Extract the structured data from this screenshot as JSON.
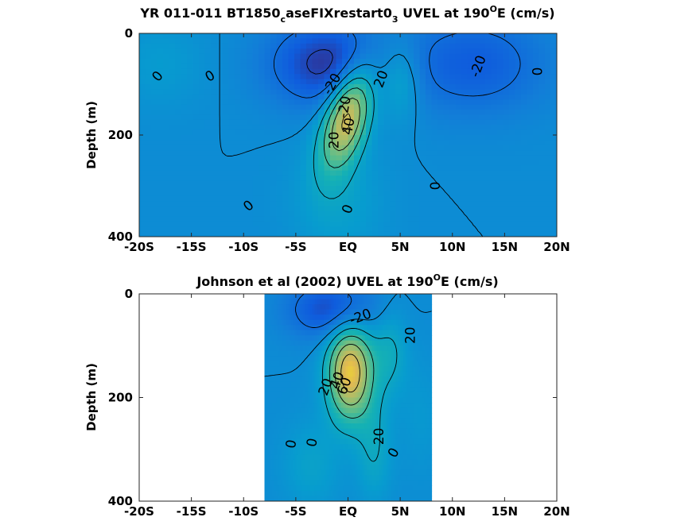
{
  "chart_data": [
    {
      "type": "heatmap",
      "title_text": "YR 011-011 BT1850",
      "title_sub1": "c",
      "title_mid": "aseFIXrestart0",
      "title_sub2": "3",
      "title_end": " UVEL at 190",
      "title_sup": "O",
      "title_tail": "E (cm/s)",
      "ylabel": "Depth (m)",
      "xlim": [
        -20,
        20
      ],
      "ylim": [
        0,
        400
      ],
      "x_tick_values": [
        -20,
        -15,
        -10,
        -5,
        0,
        5,
        10,
        15,
        20
      ],
      "x_tick_labels": [
        "-20S",
        "-15S",
        "-10S",
        "-5S",
        "EQ",
        "5N",
        "10N",
        "15N",
        "20N"
      ],
      "y_tick_values": [
        0,
        200,
        400
      ],
      "y_tick_labels": [
        "0",
        "200",
        "400"
      ],
      "data_x_extent": [
        -20,
        20
      ],
      "features": [
        {
          "x": 0,
          "y": 160,
          "v": 90,
          "sx": 1.5,
          "sy": 70,
          "tilt": -0.012
        },
        {
          "x": 5,
          "y": 90,
          "v": 28,
          "sx": 1.4,
          "sy": 55
        },
        {
          "x": -2,
          "y": 60,
          "v": -45,
          "sx": 4,
          "sy": 60
        },
        {
          "x": 12,
          "y": 60,
          "v": -30,
          "sx": 5,
          "sy": 70
        },
        {
          "x": -18,
          "y": 60,
          "v": 10,
          "sx": 3,
          "sy": 60
        },
        {
          "x": -1,
          "y": 330,
          "v": 15,
          "sx": 3,
          "sy": 80
        }
      ],
      "contour_labels": [
        {
          "text": "0",
          "x": -18.2,
          "y": 85,
          "rot": -50
        },
        {
          "text": "0",
          "x": -13.2,
          "y": 85,
          "rot": -30
        },
        {
          "text": "-20",
          "x": -1.5,
          "y": 100,
          "rot": -60
        },
        {
          "text": "-20",
          "x": 12.5,
          "y": 65,
          "rot": -70
        },
        {
          "text": "20",
          "x": 3.2,
          "y": 90,
          "rot": -70
        },
        {
          "text": "0",
          "x": 18.2,
          "y": 75,
          "rot": -90
        },
        {
          "text": "-20",
          "x": -0.3,
          "y": 145,
          "rot": -80
        },
        {
          "text": "40",
          "x": 0.1,
          "y": 183,
          "rot": -80
        },
        {
          "text": "20",
          "x": -1.3,
          "y": 210,
          "rot": -90
        },
        {
          "text": "0",
          "x": -9.5,
          "y": 340,
          "rot": -40
        },
        {
          "text": "0",
          "x": 0,
          "y": 346,
          "rot": -70
        },
        {
          "text": "0",
          "x": 8.4,
          "y": 300,
          "rot": -90
        }
      ]
    },
    {
      "type": "heatmap",
      "title_text": "Johnson et al (2002) UVEL at 190",
      "title_sup": "O",
      "title_tail": "E (cm/s)",
      "ylabel": "Depth (m)",
      "xlim": [
        -20,
        20
      ],
      "ylim": [
        0,
        400
      ],
      "x_tick_values": [
        -20,
        -15,
        -10,
        -5,
        0,
        5,
        10,
        15,
        20
      ],
      "x_tick_labels": [
        "-20S",
        "-15S",
        "-10S",
        "-5S",
        "EQ",
        "5N",
        "10N",
        "15N",
        "20N"
      ],
      "y_tick_values": [
        0,
        200,
        400
      ],
      "y_tick_labels": [
        "0",
        "200",
        "400"
      ],
      "data_x_extent": [
        -8,
        8
      ],
      "features": [
        {
          "x": 0.2,
          "y": 150,
          "v": 95,
          "sx": 1.5,
          "sy": 65
        },
        {
          "x": -1.5,
          "y": 30,
          "v": -40,
          "sx": 3,
          "sy": 40
        },
        {
          "x": 4,
          "y": 110,
          "v": 22,
          "sx": 1.2,
          "sy": 60
        },
        {
          "x": 2.5,
          "y": 300,
          "v": 20,
          "sx": 1.2,
          "sy": 70
        },
        {
          "x": -3.5,
          "y": 330,
          "v": 15,
          "sx": 2,
          "sy": 60
        },
        {
          "x": 7,
          "y": 240,
          "v": 8,
          "sx": 1.5,
          "sy": 80
        }
      ],
      "contour_labels": [
        {
          "text": "-20",
          "x": 1.2,
          "y": 45,
          "rot": -20
        },
        {
          "text": "20",
          "x": 6,
          "y": 80,
          "rot": -90
        },
        {
          "text": "20",
          "x": -2.1,
          "y": 180,
          "rot": -70
        },
        {
          "text": "40",
          "x": -1,
          "y": 167,
          "rot": -70
        },
        {
          "text": "60",
          "x": -0.3,
          "y": 178,
          "rot": -70
        },
        {
          "text": "0",
          "x": -5.4,
          "y": 290,
          "rot": -80
        },
        {
          "text": "0",
          "x": -3.4,
          "y": 287,
          "rot": -80
        },
        {
          "text": "20",
          "x": 3,
          "y": 275,
          "rot": -90
        },
        {
          "text": "0",
          "x": 4.4,
          "y": 307,
          "rot": -60
        }
      ]
    }
  ]
}
